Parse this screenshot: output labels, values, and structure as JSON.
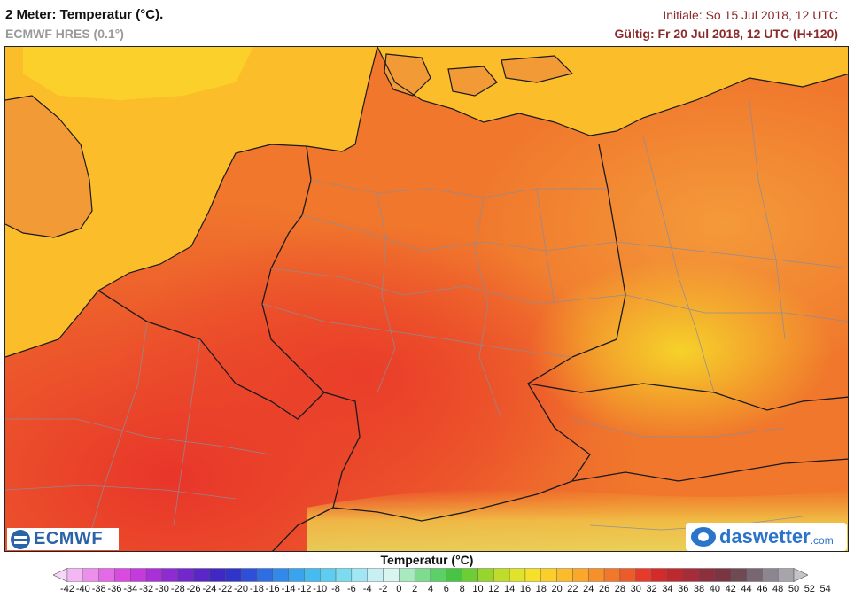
{
  "header": {
    "title": "2 Meter: Temperatur (°C).",
    "model": "ECMWF HRES (0.1°)",
    "initial": "Initiale: So 15 Jul 2018, 12 UTC",
    "valid": "Gültig: Fr 20 Jul 2018, 12 UTC (H+120)"
  },
  "logos": {
    "ecmwf": "ECMWF",
    "daswetter": "daswetter",
    "daswetter_tld": ".com"
  },
  "legend": {
    "title": "Temperatur (°C)",
    "ticks": [
      "-42",
      "-40",
      "-38",
      "-36",
      "-34",
      "-32",
      "-30",
      "-28",
      "-26",
      "-24",
      "-22",
      "-20",
      "-18",
      "-16",
      "-14",
      "-12",
      "-10",
      "-8",
      "-6",
      "-4",
      "-2",
      "0",
      "2",
      "4",
      "6",
      "8",
      "10",
      "12",
      "14",
      "16",
      "18",
      "20",
      "22",
      "24",
      "26",
      "28",
      "30",
      "32",
      "34",
      "36",
      "38",
      "40",
      "42",
      "44",
      "46",
      "48",
      "50",
      "52",
      "54"
    ],
    "colors": [
      "#f7d6f7",
      "#f3b8f3",
      "#ec8fec",
      "#e36ae6",
      "#d94ae0",
      "#c43adc",
      "#a92fd6",
      "#8e2bd2",
      "#7328cc",
      "#5b26c8",
      "#4127c4",
      "#3034c9",
      "#2f4fd8",
      "#2f6de3",
      "#3389ea",
      "#3aa3ee",
      "#45bbf0",
      "#5ccdf0",
      "#7cdbf1",
      "#a1e6f3",
      "#c7f0f5",
      "#d8f5f0",
      "#a8e9c0",
      "#7ddc90",
      "#5ccf66",
      "#48c445",
      "#6ccd35",
      "#97d52c",
      "#bedd2a",
      "#dfe329",
      "#f6e02a",
      "#fbcf2a",
      "#fbbb2a",
      "#faa72a",
      "#f7902a",
      "#f3772a",
      "#ee5b2a",
      "#e63a2a",
      "#d32a2a",
      "#bc2a30",
      "#a52c38",
      "#8e2f3e",
      "#7a3442",
      "#6f4a52",
      "#7a6670",
      "#8d8590",
      "#a8a4ac",
      "#c7c4c8"
    ]
  }
}
